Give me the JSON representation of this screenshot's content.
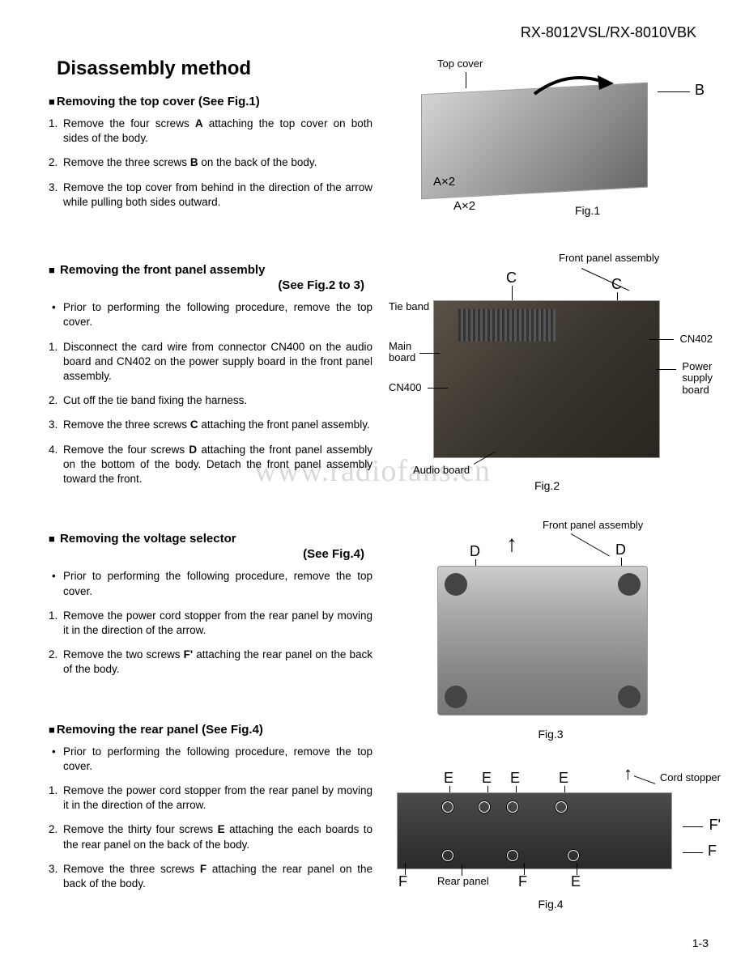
{
  "header": {
    "model": "RX-8012VSL/RX-8010VBK"
  },
  "title": "Disassembly method",
  "watermark": "www.radiofans.cn",
  "page_number": "1-3",
  "sections": [
    {
      "heading": "Removing the top cover (See Fig.1)",
      "sub": "",
      "bullets": [],
      "steps": [
        "Remove the four screws <b>A</b> attaching the top cover on both sides of the body.",
        "Remove the three screws <b>B</b> on the back of the body.",
        "Remove the top cover from behind in the direction of the arrow while pulling both sides outward."
      ]
    },
    {
      "heading": "Removing the front panel assembly",
      "sub": "(See Fig.2 to 3)",
      "bullets": [
        "Prior to performing the following procedure, remove the top cover."
      ],
      "steps": [
        "Disconnect the card wire from connector CN400 on the audio board and CN402 on the power supply board in the front panel assembly.",
        "Cut off the tie band fixing the harness.",
        "Remove the three screws <b>C</b> attaching the front panel assembly.",
        "Remove the four screws <b>D</b> attaching the front panel assembly on the bottom of the body. Detach the front panel assembly toward the front."
      ]
    },
    {
      "heading": "Removing the voltage selector",
      "sub": "(See Fig.4)",
      "bullets": [
        "Prior to performing the following procedure, remove the top cover."
      ],
      "steps": [
        "Remove the power cord stopper from the rear panel by moving it in the direction of the arrow.",
        "Remove the two screws <b>F'</b> attaching the rear panel on the back of the body."
      ]
    },
    {
      "heading": "Removing the rear panel (See Fig.4)",
      "sub": "",
      "bullets": [
        "Prior to performing the following procedure, remove the top cover."
      ],
      "steps": [
        "Remove the power cord stopper from the rear panel by moving it in the direction of the arrow.",
        "Remove the thirty four screws <b>E</b> attaching the each boards to the rear panel on the back of the body.",
        "Remove the three screws <b>F</b> attaching the rear panel on the back of the body."
      ]
    }
  ],
  "figures": {
    "fig1": {
      "caption": "Fig.1",
      "labels": {
        "top_cover": "Top cover",
        "A": "A×2",
        "A2": "A×2",
        "B": "B"
      }
    },
    "fig2": {
      "caption": "Fig.2",
      "labels": {
        "front_panel": "Front panel  assembly",
        "tie_band": "Tie band",
        "main_board": "Main board",
        "cn400": "CN400",
        "cn402": "CN402",
        "power_supply": "Power supply board",
        "audio_board": "Audio board",
        "C1": "C",
        "C2": "C"
      }
    },
    "fig3": {
      "caption": "Fig.3",
      "labels": {
        "front_panel": "Front panel  assembly",
        "D1": "D",
        "D2": "D"
      }
    },
    "fig4": {
      "caption": "Fig.4",
      "labels": {
        "cord_stopper": "Cord stopper",
        "rear_panel": "Rear panel",
        "E": "E",
        "F": "F",
        "Fp": "F'"
      }
    }
  }
}
